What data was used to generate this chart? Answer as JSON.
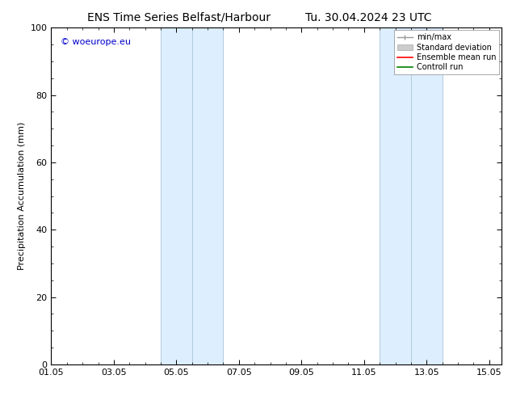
{
  "title_left": "ENS Time Series Belfast/Harbour",
  "title_right": "Tu. 30.04.2024 23 UTC",
  "ylabel": "Precipitation Accumulation (mm)",
  "ylim": [
    0,
    100
  ],
  "yticks": [
    0,
    20,
    40,
    60,
    80,
    100
  ],
  "xlim": [
    0,
    14.4
  ],
  "xtick_labels": [
    "01.05",
    "03.05",
    "05.05",
    "07.05",
    "09.05",
    "11.05",
    "13.05",
    "15.05"
  ],
  "xtick_positions": [
    0,
    2,
    4,
    6,
    8,
    10,
    12,
    14
  ],
  "shaded_bands": [
    {
      "xstart": 3.5,
      "xend": 5.0
    },
    {
      "xstart": 5.0,
      "xend": 5.4
    },
    {
      "xstart": 10.5,
      "xend": 11.5
    },
    {
      "xstart": 11.5,
      "xend": 12.5
    }
  ],
  "band1_color": "#ddeeff",
  "band2_color": "#c8dff0",
  "band_color": "#ddeeff",
  "band_color2": "#c5dcee",
  "band_edge_color": "#b0ccdd",
  "watermark_text": "© woeurope.eu",
  "watermark_color": "#0000cc",
  "background_color": "#ffffff",
  "spine_color": "#000000",
  "title_fontsize": 10,
  "axis_fontsize": 8,
  "tick_fontsize": 8,
  "legend_fontsize": 7
}
